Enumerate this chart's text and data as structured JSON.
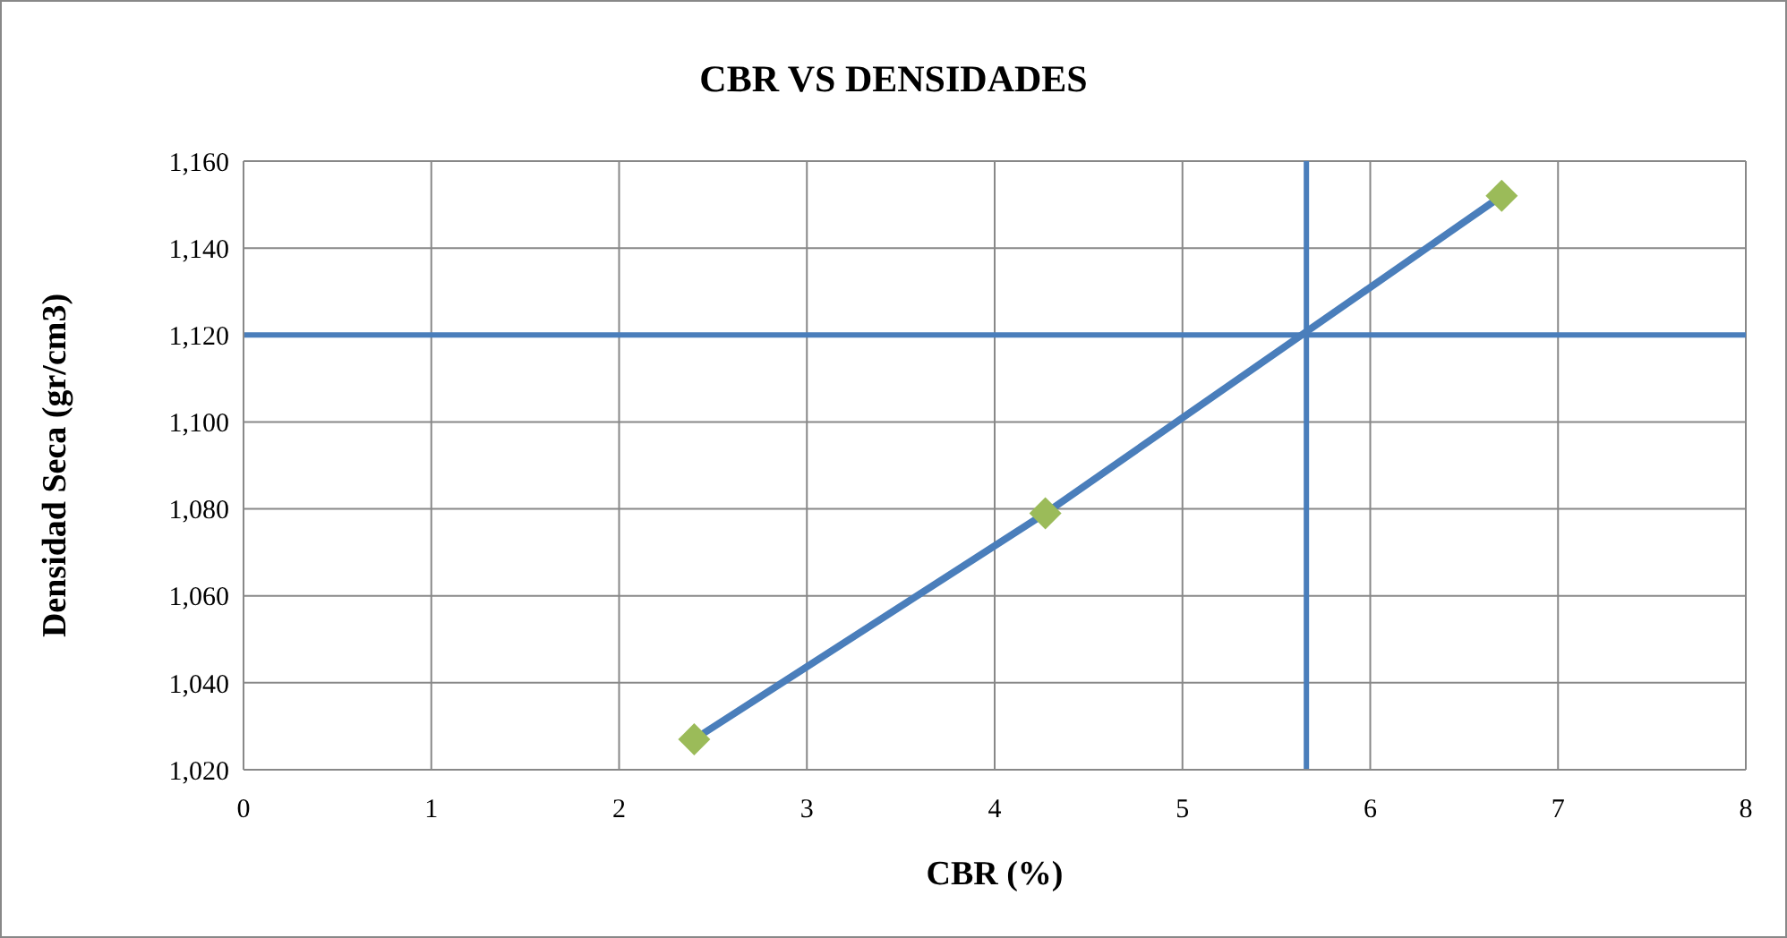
{
  "chart_data": {
    "type": "line",
    "title": "CBR VS DENSIDADES",
    "xlabel": "CBR (%)",
    "ylabel": "Densidad Seca (gr/cm3)",
    "series": [
      {
        "color": "#4a7ebb",
        "marker": "none",
        "x": [
          2.4,
          4.27,
          6.7
        ],
        "values": [
          1027,
          1079,
          1152
        ]
      },
      {
        "type": "scatter",
        "color": "#9bbb59",
        "marker": "diamond",
        "x": [
          2.4,
          4.27,
          6.7
        ],
        "values": [
          1027,
          1079,
          1152
        ]
      }
    ],
    "xlim": [
      0,
      8
    ],
    "xticks": [
      0,
      1,
      2,
      3,
      4,
      5,
      6,
      7,
      8
    ],
    "ylim": [
      1020,
      1160
    ],
    "yticks": [
      {
        "value": 1020,
        "label": "1,020"
      },
      {
        "value": 1040,
        "label": "1,040"
      },
      {
        "value": 1060,
        "label": "1,060"
      },
      {
        "value": 1080,
        "label": "1,080"
      },
      {
        "value": 1100,
        "label": "1,100"
      },
      {
        "value": 1120,
        "label": "1,120"
      },
      {
        "value": 1140,
        "label": "1,140"
      },
      {
        "value": 1160,
        "label": "1,160"
      }
    ],
    "ref_lines": [
      {
        "axis": "y",
        "value": 1120,
        "color": "#4a7ebb"
      },
      {
        "axis": "x",
        "value": 5.66,
        "color": "#4a7ebb"
      }
    ],
    "grid": true
  }
}
